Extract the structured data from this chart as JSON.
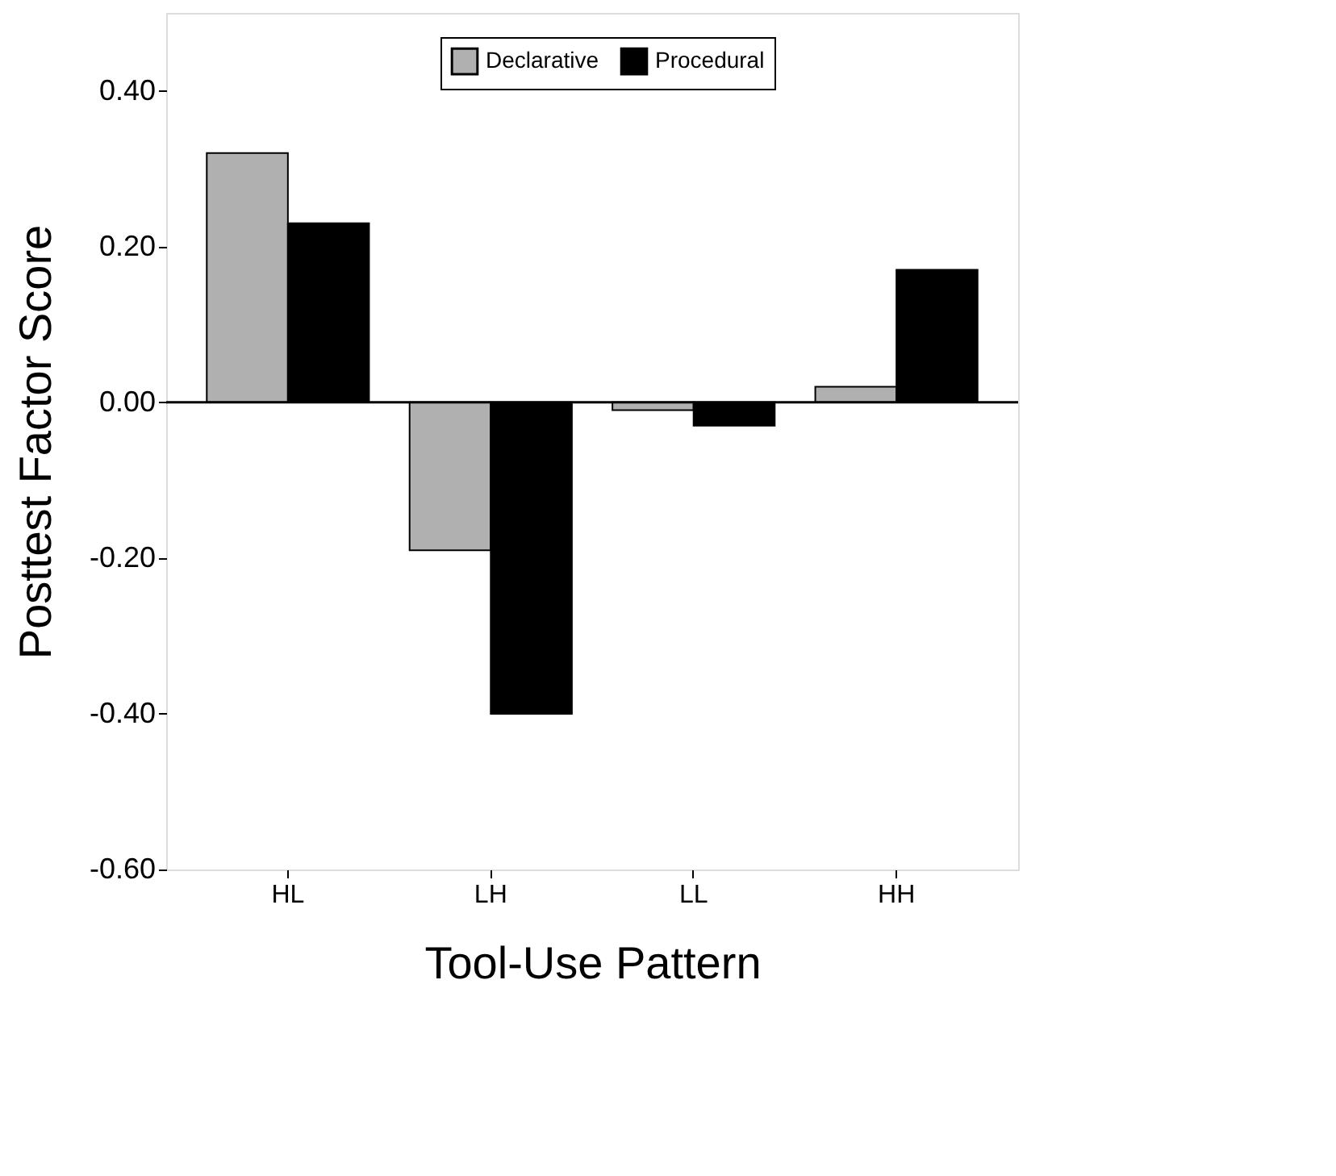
{
  "chart_data": {
    "type": "bar",
    "xlabel": "Tool-Use Pattern",
    "ylabel": "Posttest Factor Score",
    "categories": [
      "HL",
      "LH",
      "LL",
      "HH"
    ],
    "series": [
      {
        "name": "Declarative",
        "color": "#b0b0b0",
        "values": [
          0.32,
          -0.19,
          -0.01,
          0.02
        ]
      },
      {
        "name": "Procedural",
        "color": "#000000",
        "values": [
          0.23,
          -0.4,
          -0.03,
          0.17
        ]
      }
    ],
    "ylim": [
      -0.6,
      0.5
    ],
    "yticks": [
      {
        "value": -0.6,
        "label": "-0.60"
      },
      {
        "value": -0.4,
        "label": "-0.40"
      },
      {
        "value": -0.2,
        "label": "-0.20"
      },
      {
        "value": 0,
        "label": "0.00"
      },
      {
        "value": 0.2,
        "label": "0.20"
      },
      {
        "value": 0.4,
        "label": "0.40"
      }
    ],
    "ref_lines": [
      {
        "axis": "y",
        "value": 0,
        "color": "#000000"
      }
    ],
    "grid": false,
    "legend": "top"
  }
}
